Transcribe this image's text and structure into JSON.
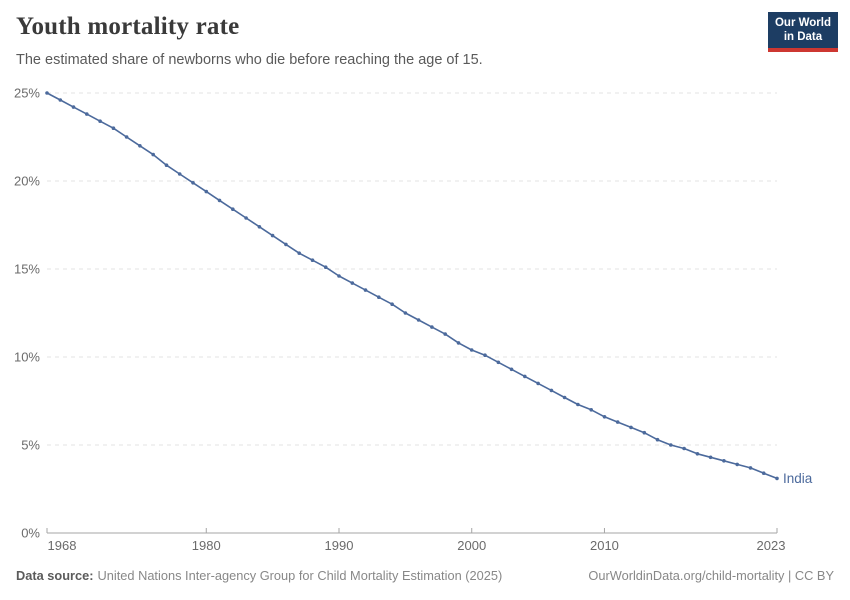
{
  "header": {
    "title": "Youth mortality rate",
    "subtitle": "The estimated share of newborns who die before reaching the age of 15.",
    "logo": {
      "line1": "Our World",
      "line2": "in Data"
    }
  },
  "chart_data": {
    "type": "line",
    "title": "Youth mortality rate",
    "xlabel": "",
    "ylabel": "",
    "xlim": [
      1968,
      2023
    ],
    "ylim": [
      0,
      25
    ],
    "grid": "horizontal-dashed",
    "legend_position": "end-of-line",
    "yticks": [
      {
        "value": 0,
        "label": "0%"
      },
      {
        "value": 5,
        "label": "5%"
      },
      {
        "value": 10,
        "label": "10%"
      },
      {
        "value": 15,
        "label": "15%"
      },
      {
        "value": 20,
        "label": "20%"
      },
      {
        "value": 25,
        "label": "25%"
      }
    ],
    "xticks": [
      {
        "value": 1968,
        "label": "1968"
      },
      {
        "value": 1980,
        "label": "1980"
      },
      {
        "value": 1990,
        "label": "1990"
      },
      {
        "value": 2000,
        "label": "2000"
      },
      {
        "value": 2010,
        "label": "2010"
      },
      {
        "value": 2023,
        "label": "2023"
      }
    ],
    "series": [
      {
        "name": "India",
        "color": "#4c6a9c",
        "years": [
          1968,
          1969,
          1970,
          1971,
          1972,
          1973,
          1974,
          1975,
          1976,
          1977,
          1978,
          1979,
          1980,
          1981,
          1982,
          1983,
          1984,
          1985,
          1986,
          1987,
          1988,
          1989,
          1990,
          1991,
          1992,
          1993,
          1994,
          1995,
          1996,
          1997,
          1998,
          1999,
          2000,
          2001,
          2002,
          2003,
          2004,
          2005,
          2006,
          2007,
          2008,
          2009,
          2010,
          2011,
          2012,
          2013,
          2014,
          2015,
          2016,
          2017,
          2018,
          2019,
          2020,
          2021,
          2022,
          2023
        ],
        "values": [
          25.0,
          24.6,
          24.2,
          23.8,
          23.4,
          23.0,
          22.5,
          22.0,
          21.5,
          20.9,
          20.4,
          19.9,
          19.4,
          18.9,
          18.4,
          17.9,
          17.4,
          16.9,
          16.4,
          15.9,
          15.5,
          15.1,
          14.6,
          14.2,
          13.8,
          13.4,
          13.0,
          12.5,
          12.1,
          11.7,
          11.3,
          10.8,
          10.4,
          10.1,
          9.7,
          9.3,
          8.9,
          8.5,
          8.1,
          7.7,
          7.3,
          7.0,
          6.6,
          6.3,
          6.0,
          5.7,
          5.3,
          5.0,
          4.8,
          4.5,
          4.3,
          4.1,
          3.9,
          3.7,
          3.4,
          3.1
        ]
      }
    ]
  },
  "footer": {
    "source_label": "Data source:",
    "source_text": "United Nations Inter-agency Group for Child Mortality Estimation (2025)",
    "credit": "OurWorldinData.org/child-mortality | CC BY"
  },
  "colors": {
    "logo_navy": "#1d3d63",
    "logo_red": "#cd3731",
    "line_blue": "#4c6a9c",
    "grid": "#e3e3e3",
    "axis": "#a5a5a5",
    "tick_label": "#6b6b6b"
  }
}
